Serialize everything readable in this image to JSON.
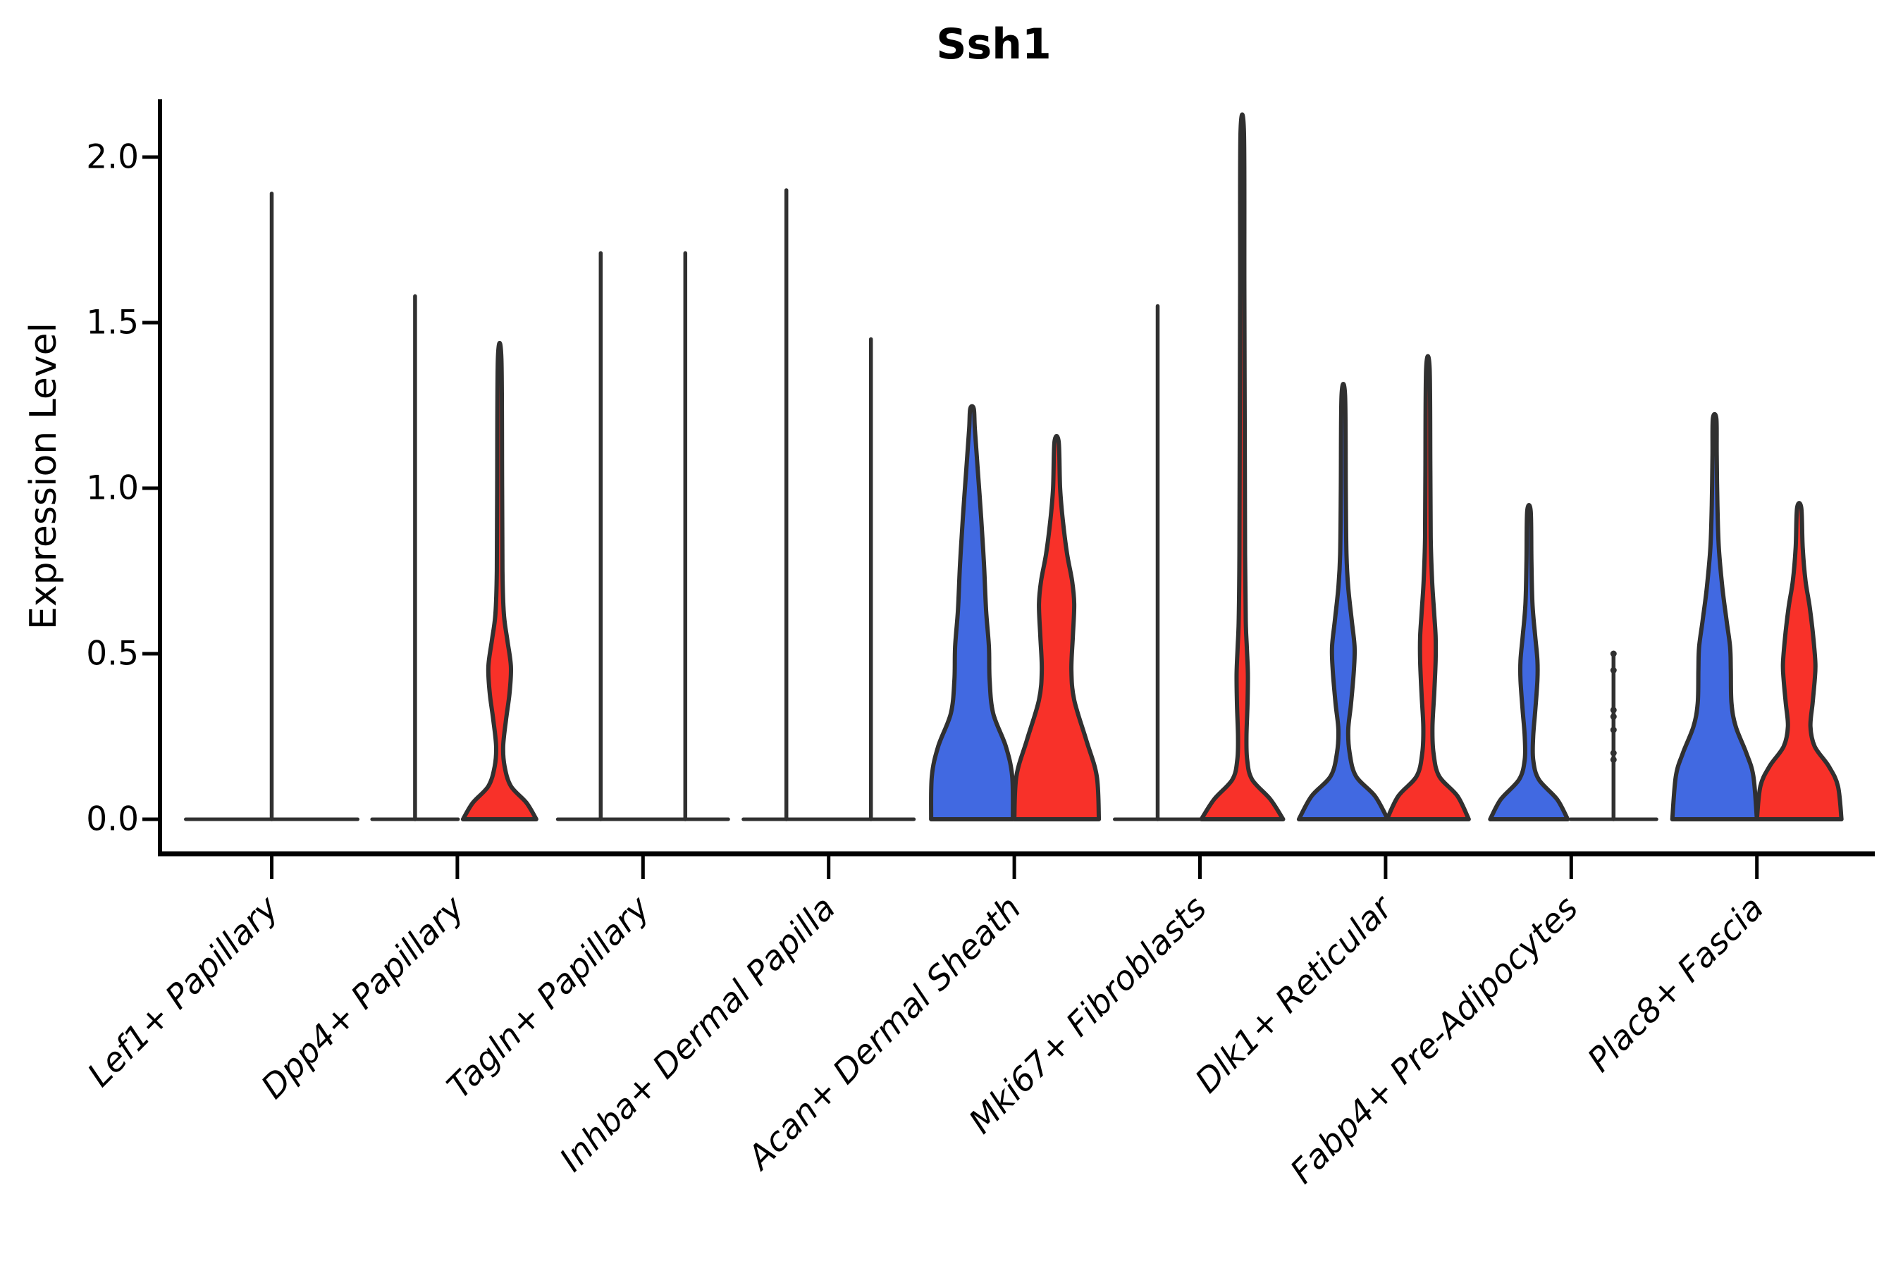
{
  "chart_data": {
    "type": "violin",
    "title": "Ssh1",
    "ylabel": "Expression Level",
    "ytick_labels": [
      "0.0",
      "0.5",
      "1.0",
      "1.5",
      "2.0"
    ],
    "yticks": [
      0.0,
      0.5,
      1.0,
      1.5,
      2.0
    ],
    "ylim": [
      0,
      2.1
    ],
    "legend": "none",
    "grid": false,
    "outline_color": "#303030",
    "split_colors": {
      "blue": "#4169E1",
      "red": "#F83129"
    },
    "categories": [
      "Lef1+ Papillary",
      "Dpp4+ Papillary",
      "Tagln+ Papillary",
      "Inhba+ Dermal Papilla",
      "Acan+ Dermal Sheath",
      "Mki67+ Fibroblasts",
      "Dlk1+ Reticular",
      "Fabp4+ Pre-Adipocytes",
      "Plac8+ Fascia"
    ],
    "groups": [
      {
        "category": "Lef1+ Papillary",
        "violins": [
          {
            "split": "single",
            "kind": "spike",
            "color": "none",
            "max": 1.89
          }
        ]
      },
      {
        "category": "Dpp4+ Papillary",
        "violins": [
          {
            "split": "left",
            "kind": "spike",
            "color": "blue",
            "max": 1.58
          },
          {
            "split": "right",
            "kind": "density",
            "color": "red",
            "max": 1.39,
            "profile": [
              [
                0,
                52
              ],
              [
                0.05,
                38
              ],
              [
                0.1,
                16
              ],
              [
                0.16,
                7
              ],
              [
                0.22,
                5
              ],
              [
                0.3,
                9
              ],
              [
                0.38,
                14
              ],
              [
                0.46,
                16
              ],
              [
                0.54,
                11
              ],
              [
                0.62,
                6
              ],
              [
                0.75,
                4
              ],
              [
                1.0,
                3.5
              ],
              [
                1.39,
                2.5
              ]
            ]
          }
        ]
      },
      {
        "category": "Tagln+ Papillary",
        "violins": [
          {
            "split": "left",
            "kind": "spike",
            "color": "blue",
            "max": 1.71
          },
          {
            "split": "right",
            "kind": "spike",
            "color": "red",
            "max": 1.71
          }
        ]
      },
      {
        "category": "Inhba+ Dermal Papilla",
        "violins": [
          {
            "split": "left",
            "kind": "spike",
            "color": "blue",
            "max": 1.9
          },
          {
            "split": "right",
            "kind": "spike",
            "color": "red",
            "max": 1.45
          }
        ]
      },
      {
        "category": "Acan+ Dermal Sheath",
        "violins": [
          {
            "split": "left",
            "kind": "density",
            "color": "blue",
            "max": 1.24,
            "profile": [
              [
                0,
                58
              ],
              [
                0.13,
                57
              ],
              [
                0.22,
                48
              ],
              [
                0.32,
                30
              ],
              [
                0.42,
                25
              ],
              [
                0.52,
                24
              ],
              [
                0.63,
                20
              ],
              [
                0.77,
                17
              ],
              [
                0.91,
                13
              ],
              [
                1.06,
                8
              ],
              [
                1.18,
                4
              ],
              [
                1.24,
                2.5
              ]
            ]
          },
          {
            "split": "right",
            "kind": "density",
            "color": "red",
            "max": 1.14,
            "profile": [
              [
                0,
                60
              ],
              [
                0.13,
                57
              ],
              [
                0.24,
                42
              ],
              [
                0.36,
                25
              ],
              [
                0.45,
                21
              ],
              [
                0.55,
                23
              ],
              [
                0.65,
                25
              ],
              [
                0.72,
                22
              ],
              [
                0.8,
                15
              ],
              [
                0.9,
                9
              ],
              [
                1.0,
                5
              ],
              [
                1.14,
                3
              ]
            ]
          }
        ]
      },
      {
        "category": "Mki67+ Fibroblasts",
        "violins": [
          {
            "split": "left",
            "kind": "spike",
            "color": "blue",
            "max": 1.55
          },
          {
            "split": "right",
            "kind": "density",
            "color": "red",
            "max": 2.07,
            "profile": [
              [
                0,
                58
              ],
              [
                0.06,
                40
              ],
              [
                0.12,
                14
              ],
              [
                0.18,
                7
              ],
              [
                0.25,
                6
              ],
              [
                0.35,
                7.5
              ],
              [
                0.44,
                8
              ],
              [
                0.52,
                6.5
              ],
              [
                0.6,
                5
              ],
              [
                0.8,
                4
              ],
              [
                1.2,
                3.5
              ],
              [
                1.6,
                3
              ],
              [
                2.07,
                2.5
              ]
            ]
          }
        ]
      },
      {
        "category": "Dlk1+ Reticular",
        "violins": [
          {
            "split": "left",
            "kind": "density",
            "color": "blue",
            "max": 1.28,
            "profile": [
              [
                0,
                63
              ],
              [
                0.07,
                45
              ],
              [
                0.13,
                18
              ],
              [
                0.2,
                9
              ],
              [
                0.27,
                7
              ],
              [
                0.35,
                11
              ],
              [
                0.45,
                15
              ],
              [
                0.52,
                16
              ],
              [
                0.6,
                12
              ],
              [
                0.7,
                7
              ],
              [
                0.8,
                4.5
              ],
              [
                1.0,
                3.5
              ],
              [
                1.28,
                2.5
              ]
            ]
          },
          {
            "split": "right",
            "kind": "density",
            "color": "red",
            "max": 1.36,
            "profile": [
              [
                0,
                58
              ],
              [
                0.07,
                42
              ],
              [
                0.13,
                16
              ],
              [
                0.2,
                8
              ],
              [
                0.28,
                6.5
              ],
              [
                0.38,
                9
              ],
              [
                0.48,
                11
              ],
              [
                0.55,
                11
              ],
              [
                0.62,
                9
              ],
              [
                0.72,
                6
              ],
              [
                0.85,
                4
              ],
              [
                1.05,
                3.5
              ],
              [
                1.36,
                2.5
              ]
            ]
          }
        ]
      },
      {
        "category": "Fabp4+ Pre-Adipocytes",
        "violins": [
          {
            "split": "left",
            "kind": "density",
            "color": "blue",
            "max": 0.93,
            "profile": [
              [
                0,
                55
              ],
              [
                0.06,
                40
              ],
              [
                0.12,
                14
              ],
              [
                0.18,
                6
              ],
              [
                0.25,
                6
              ],
              [
                0.33,
                9
              ],
              [
                0.42,
                12
              ],
              [
                0.48,
                12
              ],
              [
                0.55,
                9
              ],
              [
                0.65,
                5
              ],
              [
                0.78,
                3.5
              ],
              [
                0.93,
                2.5
              ]
            ]
          },
          {
            "split": "right",
            "kind": "strip",
            "color": "red",
            "max": 0.5,
            "points": [
              0.5,
              0.45,
              0.33,
              0.31,
              0.27,
              0.2,
              0.18
            ]
          }
        ]
      },
      {
        "category": "Plac8+ Fascia",
        "violins": [
          {
            "split": "left",
            "kind": "density",
            "color": "blue",
            "max": 1.21,
            "profile": [
              [
                0,
                60
              ],
              [
                0.13,
                55
              ],
              [
                0.2,
                45
              ],
              [
                0.28,
                30
              ],
              [
                0.35,
                24
              ],
              [
                0.45,
                23
              ],
              [
                0.52,
                22
              ],
              [
                0.6,
                17
              ],
              [
                0.7,
                11
              ],
              [
                0.82,
                6
              ],
              [
                0.95,
                4
              ],
              [
                1.1,
                3
              ],
              [
                1.21,
                2.5
              ]
            ]
          },
          {
            "split": "right",
            "kind": "density",
            "color": "red",
            "max": 0.94,
            "profile": [
              [
                0,
                60
              ],
              [
                0.1,
                55
              ],
              [
                0.16,
                42
              ],
              [
                0.22,
                22
              ],
              [
                0.28,
                16
              ],
              [
                0.35,
                19
              ],
              [
                0.42,
                22
              ],
              [
                0.47,
                23
              ],
              [
                0.55,
                20
              ],
              [
                0.64,
                15
              ],
              [
                0.72,
                9
              ],
              [
                0.82,
                5
              ],
              [
                0.94,
                3
              ]
            ]
          }
        ]
      }
    ]
  }
}
